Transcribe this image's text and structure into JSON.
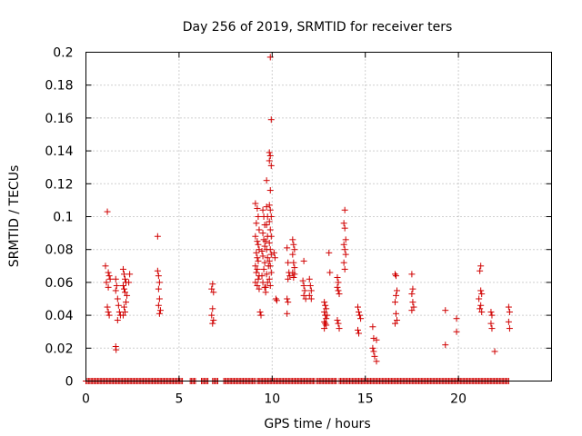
{
  "chart_data": {
    "type": "scatter",
    "title": "Day 256 of 2019, SRMTID for receiver ters",
    "xlabel": "GPS time / hours",
    "ylabel": "SRMTID / TECUs",
    "xlim": [
      0,
      25
    ],
    "ylim": [
      0,
      0.2
    ],
    "xticks": [
      0,
      5,
      10,
      15,
      20
    ],
    "xtick_labels": [
      "0",
      "5",
      "10",
      "15",
      "20"
    ],
    "yticks": [
      0,
      0.02,
      0.04,
      0.06,
      0.08,
      0.1,
      0.12,
      0.14,
      0.16,
      0.18,
      0.2
    ],
    "ytick_labels": [
      "0",
      "0.02",
      "0.04",
      "0.06",
      "0.08",
      "0.1",
      "0.12",
      "0.14",
      "0.16",
      "0.18",
      "0.2"
    ],
    "grid": true,
    "marker": "plus",
    "color": "#d00000",
    "zero_baseline": {
      "y": 0,
      "segments": [
        [
          0,
          5.2
        ],
        [
          5.6,
          5.9
        ],
        [
          6.2,
          6.6
        ],
        [
          6.8,
          7.1
        ],
        [
          7.4,
          9.1
        ],
        [
          9.2,
          12.3
        ],
        [
          12.4,
          13.5
        ],
        [
          13.6,
          22.7
        ]
      ],
      "step": 0.07
    },
    "points": [
      [
        1.15,
        0.103
      ],
      [
        1.05,
        0.07
      ],
      [
        1.2,
        0.066
      ],
      [
        1.25,
        0.064
      ],
      [
        1.3,
        0.062
      ],
      [
        1.1,
        0.06
      ],
      [
        1.2,
        0.057
      ],
      [
        1.15,
        0.045
      ],
      [
        1.2,
        0.042
      ],
      [
        1.25,
        0.04
      ],
      [
        1.6,
        0.062
      ],
      [
        1.65,
        0.058
      ],
      [
        1.6,
        0.055
      ],
      [
        1.7,
        0.05
      ],
      [
        1.75,
        0.046
      ],
      [
        1.8,
        0.042
      ],
      [
        1.85,
        0.04
      ],
      [
        1.7,
        0.037
      ],
      [
        1.6,
        0.021
      ],
      [
        1.62,
        0.019
      ],
      [
        2.0,
        0.068
      ],
      [
        2.05,
        0.065
      ],
      [
        2.1,
        0.062
      ],
      [
        2.15,
        0.06
      ],
      [
        2.0,
        0.058
      ],
      [
        2.05,
        0.056
      ],
      [
        2.1,
        0.054
      ],
      [
        2.2,
        0.052
      ],
      [
        2.15,
        0.048
      ],
      [
        2.05,
        0.045
      ],
      [
        2.1,
        0.042
      ],
      [
        2.0,
        0.04
      ],
      [
        2.3,
        0.06
      ],
      [
        2.35,
        0.065
      ],
      [
        3.85,
        0.088
      ],
      [
        3.85,
        0.067
      ],
      [
        3.9,
        0.064
      ],
      [
        3.95,
        0.06
      ],
      [
        3.9,
        0.056
      ],
      [
        3.95,
        0.05
      ],
      [
        3.9,
        0.046
      ],
      [
        4.0,
        0.043
      ],
      [
        3.95,
        0.041
      ],
      [
        6.8,
        0.059
      ],
      [
        6.75,
        0.056
      ],
      [
        6.85,
        0.054
      ],
      [
        6.8,
        0.044
      ],
      [
        6.75,
        0.04
      ],
      [
        6.85,
        0.037
      ],
      [
        6.8,
        0.035
      ],
      [
        9.1,
        0.108
      ],
      [
        9.2,
        0.105
      ],
      [
        9.25,
        0.1
      ],
      [
        9.15,
        0.096
      ],
      [
        9.3,
        0.092
      ],
      [
        9.1,
        0.088
      ],
      [
        9.2,
        0.085
      ],
      [
        9.25,
        0.083
      ],
      [
        9.3,
        0.08
      ],
      [
        9.15,
        0.078
      ],
      [
        9.2,
        0.075
      ],
      [
        9.25,
        0.073
      ],
      [
        9.1,
        0.07
      ],
      [
        9.2,
        0.068
      ],
      [
        9.15,
        0.066
      ],
      [
        9.3,
        0.064
      ],
      [
        9.25,
        0.062
      ],
      [
        9.1,
        0.06
      ],
      [
        9.2,
        0.058
      ],
      [
        9.3,
        0.056
      ],
      [
        9.35,
        0.042
      ],
      [
        9.4,
        0.04
      ],
      [
        9.5,
        0.104
      ],
      [
        9.55,
        0.1
      ],
      [
        9.6,
        0.095
      ],
      [
        9.5,
        0.09
      ],
      [
        9.55,
        0.086
      ],
      [
        9.6,
        0.082
      ],
      [
        9.45,
        0.079
      ],
      [
        9.5,
        0.076
      ],
      [
        9.6,
        0.072
      ],
      [
        9.55,
        0.068
      ],
      [
        9.45,
        0.064
      ],
      [
        9.5,
        0.06
      ],
      [
        9.6,
        0.057
      ],
      [
        9.65,
        0.054
      ],
      [
        9.7,
        0.106
      ],
      [
        9.75,
        0.1
      ],
      [
        9.7,
        0.095
      ],
      [
        9.75,
        0.088
      ],
      [
        9.65,
        0.085
      ],
      [
        9.7,
        0.08
      ],
      [
        9.75,
        0.075
      ],
      [
        9.8,
        0.07
      ],
      [
        9.7,
        0.065
      ],
      [
        9.75,
        0.06
      ],
      [
        9.65,
        0.057
      ],
      [
        9.7,
        0.122
      ],
      [
        9.85,
        0.139
      ],
      [
        9.9,
        0.137
      ],
      [
        9.85,
        0.134
      ],
      [
        9.95,
        0.131
      ],
      [
        9.9,
        0.116
      ],
      [
        9.85,
        0.107
      ],
      [
        9.9,
        0.104
      ],
      [
        9.95,
        0.1
      ],
      [
        9.85,
        0.097
      ],
      [
        9.9,
        0.092
      ],
      [
        9.95,
        0.088
      ],
      [
        9.85,
        0.084
      ],
      [
        9.9,
        0.08
      ],
      [
        9.95,
        0.077
      ],
      [
        9.85,
        0.073
      ],
      [
        9.9,
        0.07
      ],
      [
        9.95,
        0.066
      ],
      [
        9.85,
        0.062
      ],
      [
        9.9,
        0.058
      ],
      [
        9.9,
        0.197
      ],
      [
        9.95,
        0.159
      ],
      [
        10.1,
        0.078
      ],
      [
        10.15,
        0.075
      ],
      [
        10.2,
        0.05
      ],
      [
        10.25,
        0.049
      ],
      [
        10.8,
        0.081
      ],
      [
        10.85,
        0.072
      ],
      [
        10.9,
        0.066
      ],
      [
        10.95,
        0.064
      ],
      [
        10.85,
        0.062
      ],
      [
        10.8,
        0.05
      ],
      [
        10.85,
        0.048
      ],
      [
        10.8,
        0.041
      ],
      [
        11.1,
        0.086
      ],
      [
        11.15,
        0.083
      ],
      [
        11.2,
        0.08
      ],
      [
        11.1,
        0.077
      ],
      [
        11.15,
        0.072
      ],
      [
        11.2,
        0.069
      ],
      [
        11.1,
        0.066
      ],
      [
        11.15,
        0.063
      ],
      [
        11.2,
        0.065
      ],
      [
        11.7,
        0.073
      ],
      [
        11.65,
        0.061
      ],
      [
        11.7,
        0.058
      ],
      [
        11.75,
        0.055
      ],
      [
        11.7,
        0.052
      ],
      [
        11.8,
        0.05
      ],
      [
        12.0,
        0.062
      ],
      [
        12.05,
        0.058
      ],
      [
        12.1,
        0.055
      ],
      [
        12.0,
        0.052
      ],
      [
        12.1,
        0.05
      ],
      [
        12.8,
        0.048
      ],
      [
        12.85,
        0.046
      ],
      [
        12.9,
        0.044
      ],
      [
        12.8,
        0.042
      ],
      [
        12.85,
        0.04
      ],
      [
        12.9,
        0.038
      ],
      [
        12.8,
        0.036
      ],
      [
        12.85,
        0.035
      ],
      [
        12.9,
        0.034
      ],
      [
        12.8,
        0.032
      ],
      [
        12.95,
        0.04
      ],
      [
        13.05,
        0.078
      ],
      [
        13.1,
        0.066
      ],
      [
        13.5,
        0.063
      ],
      [
        13.55,
        0.06
      ],
      [
        13.5,
        0.057
      ],
      [
        13.55,
        0.055
      ],
      [
        13.6,
        0.053
      ],
      [
        13.5,
        0.037
      ],
      [
        13.55,
        0.035
      ],
      [
        13.6,
        0.032
      ],
      [
        13.9,
        0.104
      ],
      [
        13.85,
        0.096
      ],
      [
        13.9,
        0.093
      ],
      [
        13.95,
        0.086
      ],
      [
        13.85,
        0.083
      ],
      [
        13.9,
        0.08
      ],
      [
        13.95,
        0.077
      ],
      [
        13.85,
        0.072
      ],
      [
        13.9,
        0.068
      ],
      [
        14.6,
        0.045
      ],
      [
        14.65,
        0.042
      ],
      [
        14.7,
        0.04
      ],
      [
        14.75,
        0.038
      ],
      [
        14.6,
        0.031
      ],
      [
        14.65,
        0.029
      ],
      [
        15.4,
        0.033
      ],
      [
        15.45,
        0.026
      ],
      [
        15.6,
        0.025
      ],
      [
        15.4,
        0.02
      ],
      [
        15.45,
        0.018
      ],
      [
        15.5,
        0.015
      ],
      [
        15.6,
        0.012
      ],
      [
        16.6,
        0.065
      ],
      [
        16.65,
        0.064
      ],
      [
        16.7,
        0.055
      ],
      [
        16.65,
        0.052
      ],
      [
        16.6,
        0.048
      ],
      [
        16.65,
        0.041
      ],
      [
        16.7,
        0.037
      ],
      [
        16.6,
        0.035
      ],
      [
        17.5,
        0.065
      ],
      [
        17.55,
        0.056
      ],
      [
        17.5,
        0.053
      ],
      [
        17.55,
        0.048
      ],
      [
        17.6,
        0.045
      ],
      [
        17.5,
        0.043
      ],
      [
        19.3,
        0.043
      ],
      [
        19.3,
        0.022
      ],
      [
        19.9,
        0.038
      ],
      [
        19.9,
        0.03
      ],
      [
        21.2,
        0.07
      ],
      [
        21.15,
        0.067
      ],
      [
        21.2,
        0.055
      ],
      [
        21.25,
        0.053
      ],
      [
        21.1,
        0.05
      ],
      [
        21.2,
        0.046
      ],
      [
        21.15,
        0.044
      ],
      [
        21.25,
        0.042
      ],
      [
        21.75,
        0.042
      ],
      [
        21.8,
        0.04
      ],
      [
        21.75,
        0.035
      ],
      [
        21.8,
        0.032
      ],
      [
        21.95,
        0.018
      ],
      [
        22.7,
        0.045
      ],
      [
        22.75,
        0.042
      ],
      [
        22.7,
        0.036
      ],
      [
        22.75,
        0.032
      ]
    ]
  }
}
